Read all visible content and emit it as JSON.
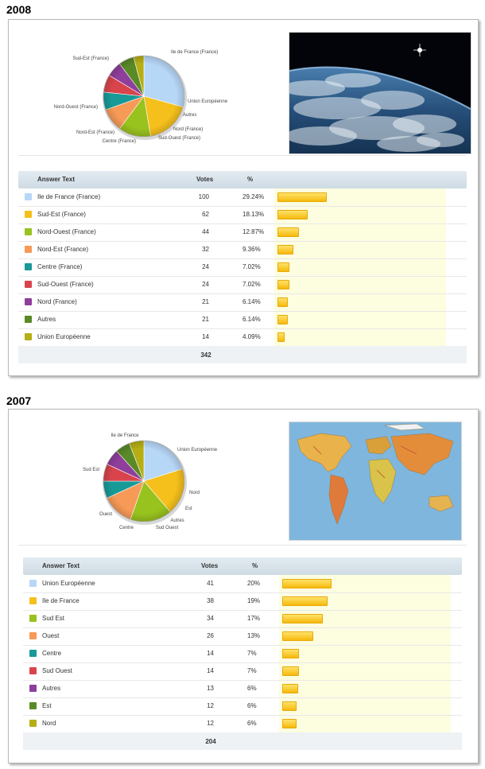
{
  "colors": [
    "#b7d7f7",
    "#f5c01c",
    "#98c21e",
    "#f79a58",
    "#189a98",
    "#d9444c",
    "#8e3e9b",
    "#5a8a27",
    "#b5ae14"
  ],
  "sections": [
    {
      "year": "2008",
      "header": {
        "answer": "Answer Text",
        "votes": "Votes",
        "pct": "%"
      },
      "total": "342",
      "photo": "earth-from-space",
      "chart_data": {
        "type": "pie",
        "labels": [
          "Ile de France (France)",
          "Sud-Est (France)",
          "Nord-Ouest (France)",
          "Nord-Est (France)",
          "Centre (France)",
          "Sud-Ouest (France)",
          "Nord (France)",
          "Autres",
          "Union Européenne"
        ],
        "values": [
          100,
          62,
          44,
          32,
          24,
          24,
          21,
          21,
          14
        ],
        "percents": [
          "29.24%",
          "18.13%",
          "12.87%",
          "9.36%",
          "7.02%",
          "7.02%",
          "6.14%",
          "6.14%",
          "4.09%"
        ]
      }
    },
    {
      "year": "2007",
      "header": {
        "answer": "Answer Text",
        "votes": "Votes",
        "pct": "%"
      },
      "total": "204",
      "photo": "world-map",
      "chart_data": {
        "type": "pie",
        "labels": [
          "Union Européenne",
          "Ile de France",
          "Sud Est",
          "Ouest",
          "Centre",
          "Sud Ouest",
          "Autres",
          "Est",
          "Nord"
        ],
        "values": [
          41,
          38,
          34,
          26,
          14,
          14,
          13,
          12,
          12
        ],
        "percents": [
          "20%",
          "19%",
          "17%",
          "13%",
          "7%",
          "7%",
          "6%",
          "6%",
          "6%"
        ]
      }
    }
  ]
}
